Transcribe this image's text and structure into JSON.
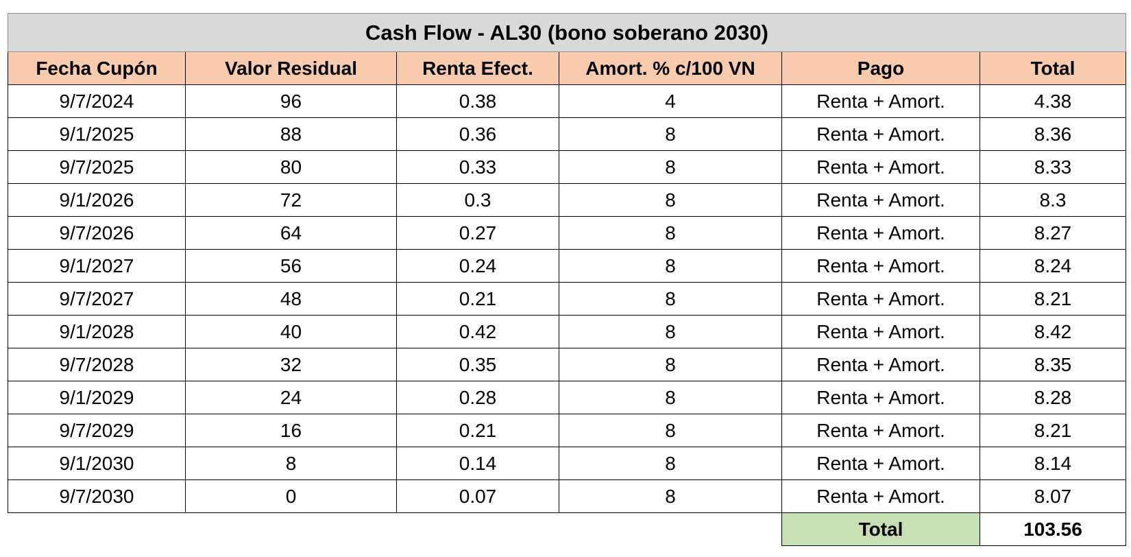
{
  "title": "Cash Flow - AL30 (bono soberano 2030)",
  "columns": [
    "Fecha Cupón",
    "Valor Residual",
    "Renta Efect.",
    "Amort. % c/100 VN",
    "Pago",
    "Total"
  ],
  "rows": [
    [
      "9/7/2024",
      96,
      0.38,
      4,
      "Renta + Amort.",
      4.38
    ],
    [
      "9/1/2025",
      88,
      0.36,
      8,
      "Renta + Amort.",
      8.36
    ],
    [
      "9/7/2025",
      80,
      0.33,
      8,
      "Renta + Amort.",
      8.33
    ],
    [
      "9/1/2026",
      72,
      0.3,
      8,
      "Renta + Amort.",
      8.3
    ],
    [
      "9/7/2026",
      64,
      0.27,
      8,
      "Renta + Amort.",
      8.27
    ],
    [
      "9/1/2027",
      56,
      0.24,
      8,
      "Renta + Amort.",
      8.24
    ],
    [
      "9/7/2027",
      48,
      0.21,
      8,
      "Renta + Amort.",
      8.21
    ],
    [
      "9/1/2028",
      40,
      0.42,
      8,
      "Renta + Amort.",
      8.42
    ],
    [
      "9/7/2028",
      32,
      0.35,
      8,
      "Renta + Amort.",
      8.35
    ],
    [
      "9/1/2029",
      24,
      0.28,
      8,
      "Renta + Amort.",
      8.28
    ],
    [
      "9/7/2029",
      16,
      0.21,
      8,
      "Renta + Amort.",
      8.21
    ],
    [
      "9/1/2030",
      8,
      0.14,
      8,
      "Renta + Amort.",
      8.14
    ],
    [
      "9/7/2030",
      0,
      0.07,
      8,
      "Renta + Amort.",
      8.07
    ]
  ],
  "total": {
    "label": "Total",
    "value": 103.56
  }
}
